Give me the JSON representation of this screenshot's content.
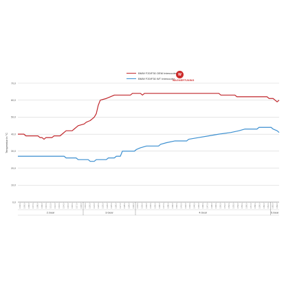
{
  "legend": {
    "logo_text": "WAGNERTUNING",
    "logo_mark": "W"
  },
  "colors": {
    "oem": "#c0262b",
    "wagner": "#3b8fd0",
    "grid": "#d6d6d6",
    "axis": "#555555"
  },
  "chart_data": {
    "type": "line",
    "title": "",
    "xlabel": "",
    "ylabel": "Temperatur in °C",
    "ylim": [
      0,
      70
    ],
    "yticks": [
      "0,0",
      "10,0",
      "20,0",
      "30,0",
      "40,0",
      "50,0",
      "60,0",
      "70,0"
    ],
    "grid": true,
    "legend_position": "top-center",
    "gear_labels": [
      "2.Gear",
      "3.Gear",
      "4.Gear",
      "5.Gear"
    ],
    "gear_bounds": [
      [
        0,
        15
      ],
      [
        15,
        27
      ],
      [
        27,
        58
      ],
      [
        58,
        120
      ]
    ],
    "x_ticks": [
      "1:04:1",
      "1:05:1",
      "1:06:1",
      "1:07:1",
      "1:08:1",
      "1:09:1",
      "1:10:1",
      "1:11:1",
      "1:12:1",
      "1:13:1",
      "1:14:1",
      "1:15:1",
      "1:16:1",
      "1:17:1",
      "1:18:1",
      "1:19:1",
      "1:20:1",
      "1:21:1",
      "1:22:1",
      "1:23:1",
      "1:24:1",
      "1:25:1",
      "1:26:1",
      "1:27:1",
      "1:28:1",
      "1:29:1",
      "1:30:1",
      "1:31:1",
      "1:32:1",
      "1:33:1",
      "1:34:1",
      "1:35:1",
      "1:36:1",
      "1:37:1",
      "1:38:1",
      "1:39:1",
      "1:40:1",
      "1:41:1",
      "1:42:1",
      "1:43:1",
      "1:44:1",
      "1:45:1",
      "1:46:1",
      "1:47:1",
      "1:48:1",
      "1:49:1",
      "1:50:1",
      "1:51:1",
      "1:52:1",
      "1:53:1",
      "1:54:1",
      "1:55:1",
      "1:56:1",
      "1:57:1",
      "1:58:1",
      "1:59:1",
      "1:60:1",
      "1:61:1",
      "1:62:1",
      "1:63:1"
    ],
    "series": [
      {
        "name": "BMW F20/F30 OEM Intercooler",
        "color": "#c0262b",
        "points": [
          [
            0,
            40
          ],
          [
            3,
            40
          ],
          [
            4,
            39
          ],
          [
            10,
            39
          ],
          [
            11,
            38
          ],
          [
            12,
            38
          ],
          [
            13,
            37
          ],
          [
            14,
            38
          ],
          [
            17,
            38
          ],
          [
            18,
            39
          ],
          [
            21,
            39
          ],
          [
            22,
            40
          ],
          [
            24,
            42
          ],
          [
            27,
            42
          ],
          [
            28,
            43
          ],
          [
            30,
            45
          ],
          [
            33,
            46
          ],
          [
            34,
            47
          ],
          [
            36,
            48
          ],
          [
            38,
            50
          ],
          [
            39,
            52
          ],
          [
            40,
            57
          ],
          [
            41,
            60
          ],
          [
            44,
            61
          ],
          [
            46,
            62
          ],
          [
            48,
            63
          ],
          [
            56,
            63
          ],
          [
            57,
            64
          ],
          [
            61,
            64
          ],
          [
            62,
            63
          ],
          [
            63,
            64
          ],
          [
            75,
            64
          ],
          [
            100,
            64
          ],
          [
            101,
            63
          ],
          [
            108,
            63
          ],
          [
            109,
            62
          ],
          [
            124,
            62
          ],
          [
            125,
            61
          ],
          [
            127,
            61
          ],
          [
            128,
            60
          ],
          [
            129,
            59
          ],
          [
            130,
            60
          ]
        ]
      },
      {
        "name": "BMW F20/F30 WT Intercooler",
        "color": "#3b8fd0",
        "points": [
          [
            0,
            27
          ],
          [
            23,
            27
          ],
          [
            24,
            26
          ],
          [
            29,
            26
          ],
          [
            30,
            25
          ],
          [
            35,
            25
          ],
          [
            36,
            24
          ],
          [
            38,
            24
          ],
          [
            39,
            25
          ],
          [
            44,
            25
          ],
          [
            45,
            26
          ],
          [
            48,
            26
          ],
          [
            49,
            27
          ],
          [
            51,
            27
          ],
          [
            52,
            30
          ],
          [
            58,
            30
          ],
          [
            59,
            31
          ],
          [
            61,
            32
          ],
          [
            64,
            33
          ],
          [
            70,
            33
          ],
          [
            71,
            34
          ],
          [
            74,
            35
          ],
          [
            78,
            36
          ],
          [
            84,
            36
          ],
          [
            85,
            37
          ],
          [
            90,
            38
          ],
          [
            95,
            39
          ],
          [
            100,
            40
          ],
          [
            106,
            41
          ],
          [
            110,
            42
          ],
          [
            113,
            43
          ],
          [
            119,
            43
          ],
          [
            120,
            44
          ],
          [
            126,
            44
          ],
          [
            127,
            43
          ],
          [
            129,
            42
          ],
          [
            130,
            41
          ]
        ]
      }
    ],
    "x_range": [
      0,
      130
    ]
  }
}
